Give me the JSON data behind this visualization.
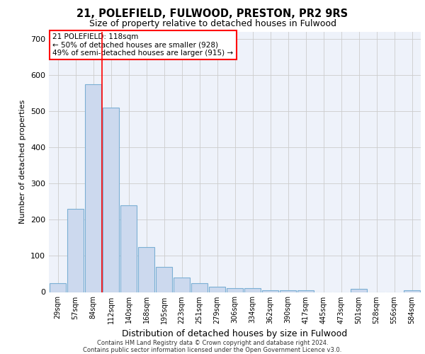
{
  "title_line1": "21, POLEFIELD, FULWOOD, PRESTON, PR2 9RS",
  "title_line2": "Size of property relative to detached houses in Fulwood",
  "xlabel": "Distribution of detached houses by size in Fulwood",
  "ylabel": "Number of detached properties",
  "categories": [
    "29sqm",
    "57sqm",
    "84sqm",
    "112sqm",
    "140sqm",
    "168sqm",
    "195sqm",
    "223sqm",
    "251sqm",
    "279sqm",
    "306sqm",
    "334sqm",
    "362sqm",
    "390sqm",
    "417sqm",
    "445sqm",
    "473sqm",
    "501sqm",
    "528sqm",
    "556sqm",
    "584sqm"
  ],
  "values": [
    25,
    230,
    575,
    510,
    240,
    125,
    70,
    40,
    25,
    15,
    10,
    10,
    5,
    5,
    5,
    0,
    0,
    8,
    0,
    0,
    5
  ],
  "bar_color": "#ccd9ee",
  "bar_edge_color": "#7bafd4",
  "grid_color": "#cccccc",
  "vline_x": 2.5,
  "vline_color": "red",
  "annotation_text": "21 POLEFIELD: 118sqm\n← 50% of detached houses are smaller (928)\n49% of semi-detached houses are larger (915) →",
  "annotation_box_color": "white",
  "annotation_box_edge": "red",
  "ylim": [
    0,
    720
  ],
  "yticks": [
    0,
    100,
    200,
    300,
    400,
    500,
    600,
    700
  ],
  "footer_line1": "Contains HM Land Registry data © Crown copyright and database right 2024.",
  "footer_line2": "Contains public sector information licensed under the Open Government Licence v3.0.",
  "plot_bg_color": "#eef2fa"
}
